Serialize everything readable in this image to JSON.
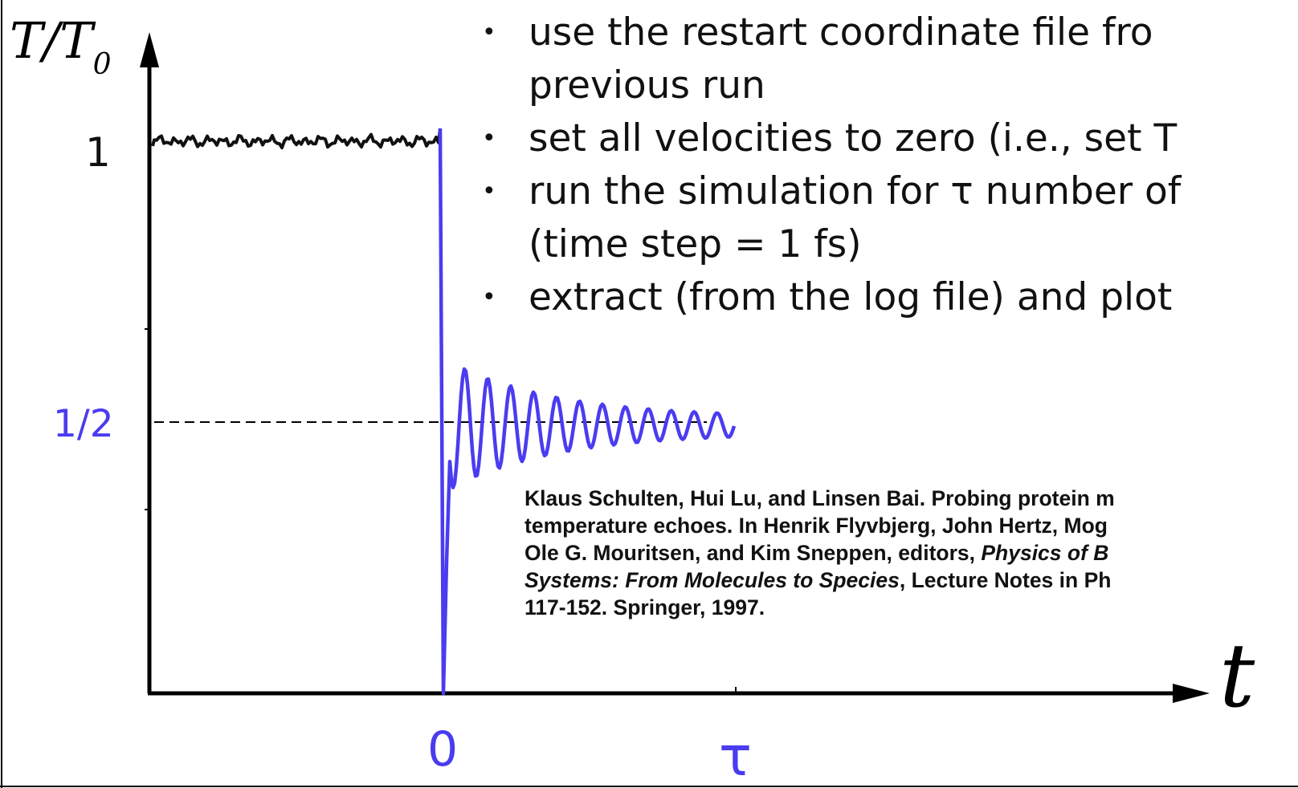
{
  "bullets": [
    {
      "lines": [
        "use the restart coordinate file fro",
        "previous run"
      ]
    },
    {
      "lines": [
        "set all velocities to zero (i.e., set T"
      ]
    },
    {
      "lines": [
        "run the simulation for τ number of",
        "(time step = 1 fs)"
      ]
    },
    {
      "lines": [
        "extract (from the log file) and plot"
      ]
    }
  ],
  "axes": {
    "y_label_main": "T/T",
    "y_label_sub": "0",
    "x_label": "t",
    "y_tick_one": "1",
    "y_tick_half": "1/2",
    "x_tick_zero": "0",
    "x_tick_tau": "τ"
  },
  "citation": {
    "line1": "Klaus Schulten, Hui Lu, and Linsen Bai. Probing protein m",
    "line2": "temperature echoes. In Henrik Flyvbjerg, John Hertz, Mog",
    "line3_plain": "Ole G. Mouritsen, and Kim Sneppen, editors, ",
    "line3_italic": "Physics of B",
    "line4_italic": "Systems: From Molecules to Species",
    "line4_plain": ", Lecture Notes in Ph",
    "line5": "117-152. Springer, 1997."
  },
  "colors": {
    "before": "#111111",
    "after": "#4a3cf0",
    "half_label": "#4a3cf0"
  }
}
